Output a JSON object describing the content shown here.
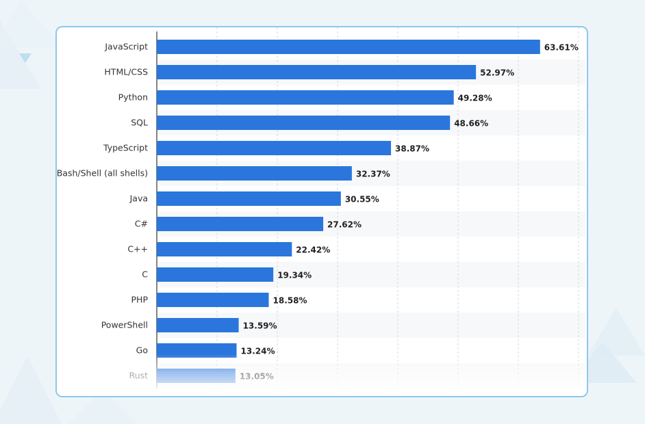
{
  "colors": {
    "bar": "#2a76dd",
    "card_border": "#8cc8ea",
    "background": "#eef5f9",
    "stripe": "#f7f8f9",
    "gridline": "#d6d9dc",
    "label": "#333333",
    "value_label": "#222222"
  },
  "chart_data": {
    "type": "bar",
    "orientation": "horizontal",
    "categories": [
      "JavaScript",
      "HTML/CSS",
      "Python",
      "SQL",
      "TypeScript",
      "Bash/Shell (all shells)",
      "Java",
      "C#",
      "C++",
      "C",
      "PHP",
      "PowerShell",
      "Go",
      "Rust"
    ],
    "values": [
      63.61,
      52.97,
      49.28,
      48.66,
      38.87,
      32.37,
      30.55,
      27.62,
      22.42,
      19.34,
      18.58,
      13.59,
      13.24,
      13.05
    ],
    "value_labels": [
      "63.61%",
      "52.97%",
      "49.28%",
      "48.66%",
      "38.87%",
      "32.37%",
      "30.55%",
      "27.62%",
      "22.42%",
      "19.34%",
      "18.58%",
      "13.59%",
      "13.24%",
      "13.05%"
    ],
    "xlim": [
      0,
      70
    ],
    "grid": true,
    "title": "",
    "xlabel": "",
    "ylabel": ""
  }
}
